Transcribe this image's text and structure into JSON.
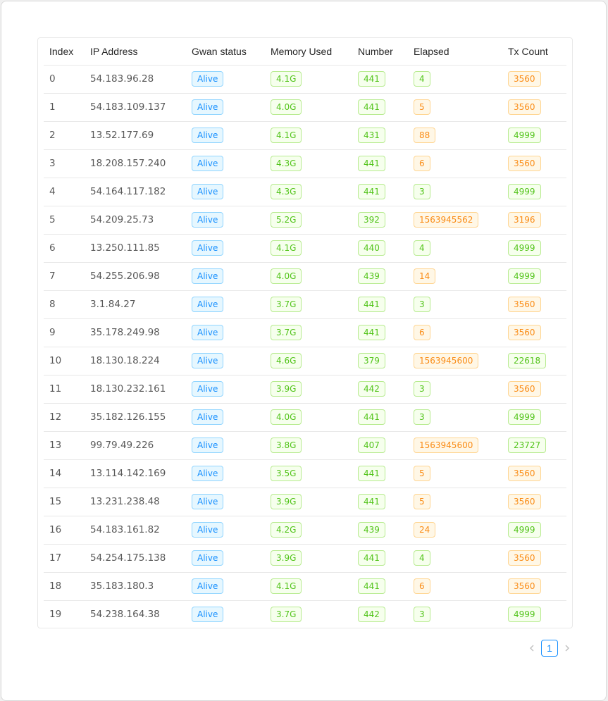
{
  "table": {
    "columns": [
      "Index",
      "IP Address",
      "Gwan status",
      "Memory Used",
      "Number",
      "Elapsed",
      "Tx Count"
    ],
    "rows": [
      {
        "index": "0",
        "ip": "54.183.96.28",
        "status": "Alive",
        "memory": "4.1G",
        "number": "441",
        "elapsed": "4",
        "elapsed_color": "green",
        "tx": "3560",
        "tx_color": "orange"
      },
      {
        "index": "1",
        "ip": "54.183.109.137",
        "status": "Alive",
        "memory": "4.0G",
        "number": "441",
        "elapsed": "5",
        "elapsed_color": "orange",
        "tx": "3560",
        "tx_color": "orange"
      },
      {
        "index": "2",
        "ip": "13.52.177.69",
        "status": "Alive",
        "memory": "4.1G",
        "number": "431",
        "elapsed": "88",
        "elapsed_color": "orange",
        "tx": "4999",
        "tx_color": "green"
      },
      {
        "index": "3",
        "ip": "18.208.157.240",
        "status": "Alive",
        "memory": "4.3G",
        "number": "441",
        "elapsed": "6",
        "elapsed_color": "orange",
        "tx": "3560",
        "tx_color": "orange"
      },
      {
        "index": "4",
        "ip": "54.164.117.182",
        "status": "Alive",
        "memory": "4.3G",
        "number": "441",
        "elapsed": "3",
        "elapsed_color": "green",
        "tx": "4999",
        "tx_color": "green"
      },
      {
        "index": "5",
        "ip": "54.209.25.73",
        "status": "Alive",
        "memory": "5.2G",
        "number": "392",
        "elapsed": "1563945562",
        "elapsed_color": "orange",
        "tx": "3196",
        "tx_color": "orange"
      },
      {
        "index": "6",
        "ip": "13.250.111.85",
        "status": "Alive",
        "memory": "4.1G",
        "number": "440",
        "elapsed": "4",
        "elapsed_color": "green",
        "tx": "4999",
        "tx_color": "green"
      },
      {
        "index": "7",
        "ip": "54.255.206.98",
        "status": "Alive",
        "memory": "4.0G",
        "number": "439",
        "elapsed": "14",
        "elapsed_color": "orange",
        "tx": "4999",
        "tx_color": "green"
      },
      {
        "index": "8",
        "ip": "3.1.84.27",
        "status": "Alive",
        "memory": "3.7G",
        "number": "441",
        "elapsed": "3",
        "elapsed_color": "green",
        "tx": "3560",
        "tx_color": "orange"
      },
      {
        "index": "9",
        "ip": "35.178.249.98",
        "status": "Alive",
        "memory": "3.7G",
        "number": "441",
        "elapsed": "6",
        "elapsed_color": "orange",
        "tx": "3560",
        "tx_color": "orange"
      },
      {
        "index": "10",
        "ip": "18.130.18.224",
        "status": "Alive",
        "memory": "4.6G",
        "number": "379",
        "elapsed": "1563945600",
        "elapsed_color": "orange",
        "tx": "22618",
        "tx_color": "green"
      },
      {
        "index": "11",
        "ip": "18.130.232.161",
        "status": "Alive",
        "memory": "3.9G",
        "number": "442",
        "elapsed": "3",
        "elapsed_color": "green",
        "tx": "3560",
        "tx_color": "orange"
      },
      {
        "index": "12",
        "ip": "35.182.126.155",
        "status": "Alive",
        "memory": "4.0G",
        "number": "441",
        "elapsed": "3",
        "elapsed_color": "green",
        "tx": "4999",
        "tx_color": "green"
      },
      {
        "index": "13",
        "ip": "99.79.49.226",
        "status": "Alive",
        "memory": "3.8G",
        "number": "407",
        "elapsed": "1563945600",
        "elapsed_color": "orange",
        "tx": "23727",
        "tx_color": "green"
      },
      {
        "index": "14",
        "ip": "13.114.142.169",
        "status": "Alive",
        "memory": "3.5G",
        "number": "441",
        "elapsed": "5",
        "elapsed_color": "orange",
        "tx": "3560",
        "tx_color": "orange"
      },
      {
        "index": "15",
        "ip": "13.231.238.48",
        "status": "Alive",
        "memory": "3.9G",
        "number": "441",
        "elapsed": "5",
        "elapsed_color": "orange",
        "tx": "3560",
        "tx_color": "orange"
      },
      {
        "index": "16",
        "ip": "54.183.161.82",
        "status": "Alive",
        "memory": "4.2G",
        "number": "439",
        "elapsed": "24",
        "elapsed_color": "orange",
        "tx": "4999",
        "tx_color": "green"
      },
      {
        "index": "17",
        "ip": "54.254.175.138",
        "status": "Alive",
        "memory": "3.9G",
        "number": "441",
        "elapsed": "4",
        "elapsed_color": "green",
        "tx": "3560",
        "tx_color": "orange"
      },
      {
        "index": "18",
        "ip": "35.183.180.3",
        "status": "Alive",
        "memory": "4.1G",
        "number": "441",
        "elapsed": "6",
        "elapsed_color": "orange",
        "tx": "3560",
        "tx_color": "orange"
      },
      {
        "index": "19",
        "ip": "54.238.164.38",
        "status": "Alive",
        "memory": "3.7G",
        "number": "442",
        "elapsed": "3",
        "elapsed_color": "green",
        "tx": "4999",
        "tx_color": "green"
      }
    ]
  },
  "pagination": {
    "prev_icon": "chevron-left-icon",
    "current_page": "1",
    "next_icon": "chevron-right-icon"
  },
  "colors": {
    "blue": "#1890ff",
    "green": "#52c41a",
    "orange": "#fa8c16"
  }
}
